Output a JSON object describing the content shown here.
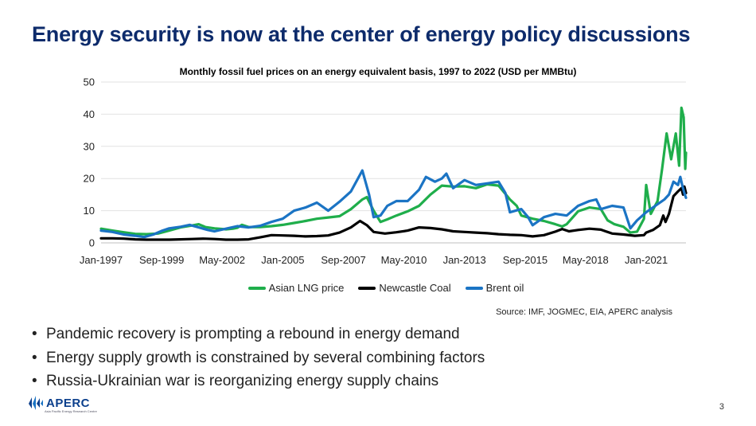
{
  "slide": {
    "title": "Energy security is now at the center of energy policy discussions",
    "source": "Source: IMF, JOGMEC, EIA, APERC analysis",
    "bullets": [
      "Pandemic recovery is prompting a rebound in energy demand",
      "Energy supply growth is constrained by several combining factors",
      "Russia-Ukrainian war is reorganizing energy supply chains"
    ],
    "logo_text": "APERC",
    "logo_subtitle": "Asia Pacific Energy Research Centre",
    "page_number": "3"
  },
  "chart_data": {
    "type": "line",
    "title": "Monthly fossil fuel prices on an energy equivalent basis, 1997 to 2022 (USD per MMBtu)",
    "xlabel": "",
    "ylabel": "",
    "ylim": [
      0,
      50
    ],
    "yticks": [
      0,
      10,
      20,
      30,
      40,
      50
    ],
    "xlim": [
      1997.0,
      2022.75
    ],
    "xticks": [
      {
        "x": 1997.0,
        "label": "Jan-1997"
      },
      {
        "x": 1999.67,
        "label": "Sep-1999"
      },
      {
        "x": 2002.33,
        "label": "May-2002"
      },
      {
        "x": 2005.0,
        "label": "Jan-2005"
      },
      {
        "x": 2007.67,
        "label": "Sep-2007"
      },
      {
        "x": 2010.33,
        "label": "May-2010"
      },
      {
        "x": 2013.0,
        "label": "Jan-2013"
      },
      {
        "x": 2015.67,
        "label": "Sep-2015"
      },
      {
        "x": 2018.33,
        "label": "May-2018"
      },
      {
        "x": 2021.0,
        "label": "Jan-2021"
      }
    ],
    "grid": true,
    "legend_position": "bottom",
    "series": [
      {
        "name": "Asian LNG price",
        "color": "#1fae4b",
        "points": [
          [
            1997.0,
            4.4
          ],
          [
            1997.5,
            3.8
          ],
          [
            1998.0,
            3.3
          ],
          [
            1998.5,
            2.8
          ],
          [
            1999.0,
            2.7
          ],
          [
            1999.5,
            2.9
          ],
          [
            2000.0,
            3.8
          ],
          [
            2000.5,
            4.8
          ],
          [
            2001.0,
            5.4
          ],
          [
            2001.3,
            5.8
          ],
          [
            2001.6,
            4.9
          ],
          [
            2002.0,
            4.5
          ],
          [
            2002.5,
            4.2
          ],
          [
            2002.8,
            4.4
          ],
          [
            2003.0,
            4.7
          ],
          [
            2003.2,
            5.6
          ],
          [
            2003.5,
            4.9
          ],
          [
            2004.0,
            4.9
          ],
          [
            2004.5,
            5.2
          ],
          [
            2005.0,
            5.6
          ],
          [
            2005.5,
            6.2
          ],
          [
            2006.0,
            6.8
          ],
          [
            2006.5,
            7.5
          ],
          [
            2007.0,
            7.9
          ],
          [
            2007.5,
            8.3
          ],
          [
            2008.0,
            10.5
          ],
          [
            2008.5,
            13.5
          ],
          [
            2008.7,
            14.2
          ],
          [
            2009.0,
            10.0
          ],
          [
            2009.3,
            6.5
          ],
          [
            2009.6,
            7.3
          ],
          [
            2010.0,
            8.5
          ],
          [
            2010.5,
            9.8
          ],
          [
            2011.0,
            11.5
          ],
          [
            2011.5,
            15.0
          ],
          [
            2012.0,
            17.8
          ],
          [
            2012.5,
            17.5
          ],
          [
            2013.0,
            17.6
          ],
          [
            2013.5,
            17.0
          ],
          [
            2014.0,
            18.2
          ],
          [
            2014.5,
            17.8
          ],
          [
            2015.0,
            13.5
          ],
          [
            2015.3,
            11.5
          ],
          [
            2015.5,
            8.5
          ],
          [
            2016.0,
            7.5
          ],
          [
            2016.5,
            6.8
          ],
          [
            2017.0,
            5.8
          ],
          [
            2017.3,
            5.1
          ],
          [
            2017.5,
            5.8
          ],
          [
            2018.0,
            9.8
          ],
          [
            2018.5,
            11.0
          ],
          [
            2019.0,
            10.5
          ],
          [
            2019.3,
            7.0
          ],
          [
            2019.6,
            5.8
          ],
          [
            2020.0,
            5.0
          ],
          [
            2020.3,
            3.2
          ],
          [
            2020.6,
            3.5
          ],
          [
            2020.9,
            7.5
          ],
          [
            2021.0,
            18.0
          ],
          [
            2021.2,
            9.0
          ],
          [
            2021.5,
            13.0
          ],
          [
            2021.7,
            23.0
          ],
          [
            2021.9,
            34.0
          ],
          [
            2022.1,
            26.0
          ],
          [
            2022.3,
            34.0
          ],
          [
            2022.45,
            24.0
          ],
          [
            2022.55,
            42.0
          ],
          [
            2022.65,
            39.0
          ],
          [
            2022.72,
            23.0
          ],
          [
            2022.75,
            28.0
          ]
        ]
      },
      {
        "name": "Newcastle Coal",
        "color": "#000000",
        "points": [
          [
            1997.0,
            1.4
          ],
          [
            1997.5,
            1.4
          ],
          [
            1998.0,
            1.3
          ],
          [
            1998.5,
            1.1
          ],
          [
            1999.0,
            1.0
          ],
          [
            1999.5,
            1.0
          ],
          [
            2000.0,
            1.0
          ],
          [
            2000.5,
            1.1
          ],
          [
            2001.0,
            1.2
          ],
          [
            2001.5,
            1.3
          ],
          [
            2002.0,
            1.2
          ],
          [
            2002.5,
            1.0
          ],
          [
            2003.0,
            1.0
          ],
          [
            2003.5,
            1.1
          ],
          [
            2004.0,
            1.7
          ],
          [
            2004.5,
            2.4
          ],
          [
            2005.0,
            2.3
          ],
          [
            2005.5,
            2.2
          ],
          [
            2006.0,
            2.0
          ],
          [
            2006.5,
            2.1
          ],
          [
            2007.0,
            2.3
          ],
          [
            2007.5,
            3.2
          ],
          [
            2008.0,
            4.8
          ],
          [
            2008.4,
            6.8
          ],
          [
            2008.7,
            5.5
          ],
          [
            2009.0,
            3.4
          ],
          [
            2009.5,
            2.9
          ],
          [
            2010.0,
            3.3
          ],
          [
            2010.5,
            3.8
          ],
          [
            2011.0,
            4.8
          ],
          [
            2011.5,
            4.6
          ],
          [
            2012.0,
            4.2
          ],
          [
            2012.5,
            3.6
          ],
          [
            2013.0,
            3.4
          ],
          [
            2013.5,
            3.2
          ],
          [
            2014.0,
            3.0
          ],
          [
            2014.5,
            2.7
          ],
          [
            2015.0,
            2.5
          ],
          [
            2015.5,
            2.4
          ],
          [
            2016.0,
            2.0
          ],
          [
            2016.5,
            2.4
          ],
          [
            2017.0,
            3.5
          ],
          [
            2017.3,
            4.3
          ],
          [
            2017.6,
            3.6
          ],
          [
            2018.0,
            4.0
          ],
          [
            2018.5,
            4.4
          ],
          [
            2019.0,
            4.1
          ],
          [
            2019.5,
            2.9
          ],
          [
            2020.0,
            2.6
          ],
          [
            2020.5,
            2.2
          ],
          [
            2020.9,
            2.4
          ],
          [
            2021.0,
            3.2
          ],
          [
            2021.3,
            4.0
          ],
          [
            2021.6,
            5.5
          ],
          [
            2021.75,
            8.5
          ],
          [
            2021.85,
            6.5
          ],
          [
            2022.0,
            9.0
          ],
          [
            2022.2,
            14.5
          ],
          [
            2022.4,
            16.0
          ],
          [
            2022.55,
            17.0
          ],
          [
            2022.62,
            15.0
          ],
          [
            2022.68,
            17.5
          ],
          [
            2022.75,
            15.5
          ]
        ]
      },
      {
        "name": "Brent oil",
        "color": "#1b74c4",
        "points": [
          [
            1997.0,
            3.8
          ],
          [
            1997.5,
            3.4
          ],
          [
            1998.0,
            2.6
          ],
          [
            1998.5,
            2.2
          ],
          [
            1998.9,
            1.8
          ],
          [
            1999.3,
            2.6
          ],
          [
            1999.7,
            3.8
          ],
          [
            2000.0,
            4.5
          ],
          [
            2000.5,
            5.0
          ],
          [
            2000.9,
            5.6
          ],
          [
            2001.3,
            4.8
          ],
          [
            2001.7,
            4.0
          ],
          [
            2002.0,
            3.6
          ],
          [
            2002.5,
            4.4
          ],
          [
            2003.0,
            5.2
          ],
          [
            2003.5,
            4.8
          ],
          [
            2004.0,
            5.3
          ],
          [
            2004.5,
            6.5
          ],
          [
            2005.0,
            7.5
          ],
          [
            2005.5,
            10.0
          ],
          [
            2006.0,
            11.0
          ],
          [
            2006.5,
            12.5
          ],
          [
            2007.0,
            10.0
          ],
          [
            2007.5,
            12.8
          ],
          [
            2008.0,
            16.0
          ],
          [
            2008.5,
            22.5
          ],
          [
            2008.8,
            15.0
          ],
          [
            2009.0,
            8.0
          ],
          [
            2009.3,
            8.5
          ],
          [
            2009.6,
            11.5
          ],
          [
            2010.0,
            13.0
          ],
          [
            2010.5,
            13.0
          ],
          [
            2011.0,
            16.5
          ],
          [
            2011.3,
            20.5
          ],
          [
            2011.7,
            19.0
          ],
          [
            2012.0,
            20.0
          ],
          [
            2012.2,
            21.5
          ],
          [
            2012.5,
            17.0
          ],
          [
            2013.0,
            19.5
          ],
          [
            2013.5,
            18.0
          ],
          [
            2014.0,
            18.5
          ],
          [
            2014.5,
            19.0
          ],
          [
            2014.8,
            15.5
          ],
          [
            2015.0,
            9.5
          ],
          [
            2015.5,
            10.5
          ],
          [
            2015.8,
            8.0
          ],
          [
            2016.0,
            5.5
          ],
          [
            2016.5,
            8.0
          ],
          [
            2017.0,
            9.0
          ],
          [
            2017.5,
            8.5
          ],
          [
            2018.0,
            11.5
          ],
          [
            2018.5,
            13.0
          ],
          [
            2018.8,
            13.5
          ],
          [
            2019.0,
            10.5
          ],
          [
            2019.5,
            11.5
          ],
          [
            2020.0,
            11.0
          ],
          [
            2020.3,
            4.5
          ],
          [
            2020.6,
            7.0
          ],
          [
            2021.0,
            9.5
          ],
          [
            2021.5,
            12.0
          ],
          [
            2021.8,
            13.5
          ],
          [
            2022.0,
            15.0
          ],
          [
            2022.2,
            19.0
          ],
          [
            2022.4,
            18.0
          ],
          [
            2022.5,
            20.5
          ],
          [
            2022.6,
            17.5
          ],
          [
            2022.7,
            15.0
          ],
          [
            2022.75,
            14.0
          ]
        ]
      }
    ]
  }
}
